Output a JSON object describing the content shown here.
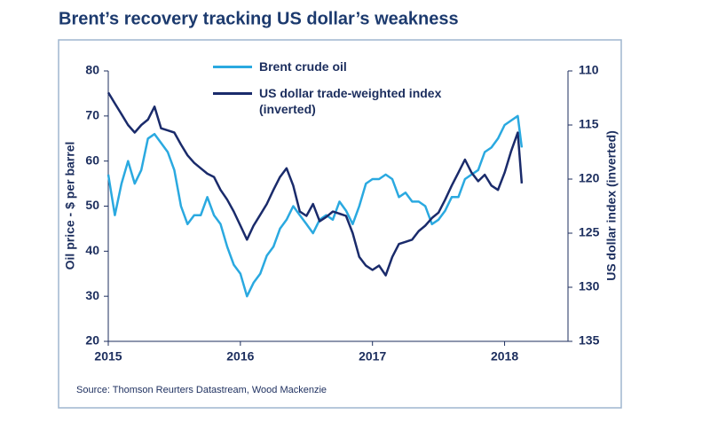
{
  "chart_data": {
    "type": "line",
    "title": "Brent’s recovery tracking US dollar’s weakness",
    "y_label": "Oil price - $ per barrel",
    "y2_label": "US dollar index (inverted)",
    "source": "Source: Thomson Reurters Datastream, Wood Mackenzie",
    "x": [
      2015,
      2015.05,
      2015.1,
      2015.15,
      2015.2,
      2015.25,
      2015.3,
      2015.35,
      2015.4,
      2015.45,
      2015.5,
      2015.55,
      2015.6,
      2015.65,
      2015.7,
      2015.75,
      2015.8,
      2015.85,
      2015.9,
      2015.95,
      2016,
      2016.05,
      2016.1,
      2016.15,
      2016.2,
      2016.25,
      2016.3,
      2016.35,
      2016.4,
      2016.45,
      2016.5,
      2016.55,
      2016.6,
      2016.65,
      2016.7,
      2016.75,
      2016.8,
      2016.85,
      2016.9,
      2016.95,
      2017,
      2017.05,
      2017.1,
      2017.15,
      2017.2,
      2017.25,
      2017.3,
      2017.35,
      2017.4,
      2017.45,
      2017.5,
      2017.55,
      2017.6,
      2017.65,
      2017.7,
      2017.75,
      2017.8,
      2017.85,
      2017.9,
      2017.95,
      2018,
      2018.05,
      2018.1,
      2018.13
    ],
    "xlim": [
      2015,
      2018.48
    ],
    "xticks": [
      2015,
      2016,
      2017,
      2018
    ],
    "ylim": [
      20,
      80
    ],
    "yticks": [
      20,
      30,
      40,
      50,
      60,
      70,
      80
    ],
    "y2lim": [
      110,
      135
    ],
    "y2ticks": [
      110,
      115,
      120,
      125,
      130,
      135
    ],
    "y2_inverted": true,
    "grid": false,
    "series": [
      {
        "name": "Brent crude oil",
        "color": "#2aa9e0",
        "values": [
          57,
          48,
          55,
          60,
          55,
          58,
          65,
          66,
          64,
          62,
          58,
          50,
          46,
          48,
          48,
          52,
          48,
          46,
          41,
          37,
          35,
          30,
          33,
          35,
          39,
          41,
          45,
          47,
          50,
          48,
          46,
          44,
          47,
          48,
          47,
          51,
          49,
          46,
          50,
          55,
          56,
          56,
          57,
          56,
          52,
          53,
          51,
          51,
          50,
          46,
          47,
          49,
          52,
          52,
          56,
          57,
          58,
          62,
          63,
          65,
          68,
          69,
          70,
          63
        ]
      },
      {
        "name": "US dollar trade-weighted index (inverted)",
        "color": "#1a2b6b",
        "axis": "y2",
        "values": [
          112,
          113,
          114,
          115,
          115.7,
          115,
          114.5,
          113.3,
          115.3,
          115.5,
          115.7,
          116.8,
          117.8,
          118.5,
          119,
          119.5,
          119.8,
          121,
          121.9,
          123,
          124.3,
          125.6,
          124.3,
          123.3,
          122.3,
          121,
          119.8,
          119,
          120.6,
          123,
          123.4,
          122.3,
          123.9,
          123.5,
          123,
          123.2,
          123.4,
          125,
          127.2,
          128,
          128.4,
          128,
          128.9,
          127.2,
          126,
          125.8,
          125.6,
          124.8,
          124.3,
          123.6,
          123.1,
          121.9,
          120.6,
          119.4,
          118.2,
          119.4,
          120.2,
          119.6,
          120.6,
          121,
          119.4,
          117.4,
          115.7,
          120.4
        ]
      }
    ]
  }
}
